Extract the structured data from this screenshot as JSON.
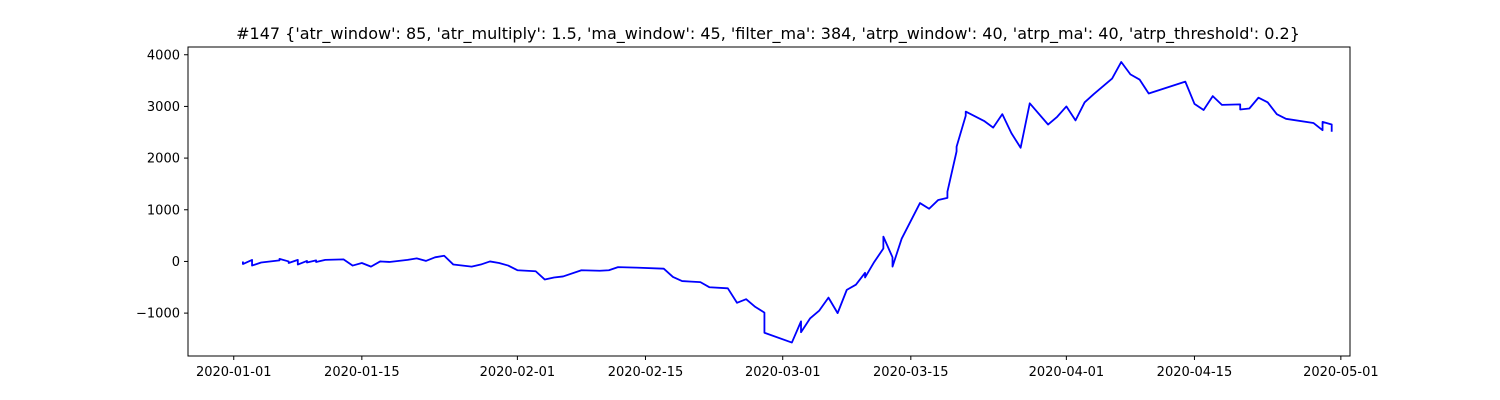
{
  "chart_data": {
    "type": "line",
    "title": "#147 {'atr_window': 85, 'atr_multiply': 1.5, 'ma_window': 45, 'filter_ma': 384, 'atrp_window': 40, 'atrp_ma': 40, 'atrp_threshold': 0.2}",
    "xlabel": "",
    "ylabel": "",
    "xlim": [
      "2019-12-27",
      "2020-05-02"
    ],
    "ylim": [
      -1830,
      4150
    ],
    "x_ticks": [
      "2020-01-01",
      "2020-01-15",
      "2020-02-01",
      "2020-02-15",
      "2020-03-01",
      "2020-03-15",
      "2020-04-01",
      "2020-04-15",
      "2020-05-01"
    ],
    "y_ticks": [
      -1000,
      0,
      1000,
      2000,
      3000,
      4000
    ],
    "y_tick_labels": [
      "−1000",
      "0",
      "1000",
      "2000",
      "3000",
      "4000"
    ],
    "grid": false,
    "legend": "none",
    "line_color": "#0000ff",
    "series": [
      {
        "x": [
          "2020-01-02",
          "2020-01-02",
          "2020-01-03",
          "2020-01-03",
          "2020-01-04",
          "2020-01-06",
          "2020-01-06",
          "2020-01-07",
          "2020-01-07",
          "2020-01-08",
          "2020-01-08",
          "2020-01-09",
          "2020-01-09",
          "2020-01-10",
          "2020-01-10",
          "2020-01-11",
          "2020-01-13",
          "2020-01-14",
          "2020-01-15",
          "2020-01-16",
          "2020-01-17",
          "2020-01-18",
          "2020-01-20",
          "2020-01-21",
          "2020-01-22",
          "2020-01-23",
          "2020-01-24",
          "2020-01-25",
          "2020-01-27",
          "2020-01-28",
          "2020-01-29",
          "2020-01-30",
          "2020-01-31",
          "2020-02-01",
          "2020-02-03",
          "2020-02-04",
          "2020-02-05",
          "2020-02-06",
          "2020-02-08",
          "2020-02-10",
          "2020-02-11",
          "2020-02-12",
          "2020-02-14",
          "2020-02-17",
          "2020-02-18",
          "2020-02-19",
          "2020-02-20",
          "2020-02-21",
          "2020-02-22",
          "2020-02-24",
          "2020-02-25",
          "2020-02-26",
          "2020-02-27",
          "2020-02-28",
          "2020-02-28",
          "2020-03-02",
          "2020-03-03",
          "2020-03-03",
          "2020-03-04",
          "2020-03-05",
          "2020-03-06",
          "2020-03-07",
          "2020-03-08",
          "2020-03-09",
          "2020-03-10",
          "2020-03-10",
          "2020-03-11",
          "2020-03-12",
          "2020-03-12",
          "2020-03-13",
          "2020-03-13",
          "2020-03-14",
          "2020-03-16",
          "2020-03-17",
          "2020-03-18",
          "2020-03-19",
          "2020-03-19",
          "2020-03-20",
          "2020-03-20",
          "2020-03-21",
          "2020-03-21",
          "2020-03-23",
          "2020-03-24",
          "2020-03-25",
          "2020-03-26",
          "2020-03-27",
          "2020-03-28",
          "2020-03-30",
          "2020-03-31",
          "2020-04-01",
          "2020-04-02",
          "2020-04-03",
          "2020-04-04",
          "2020-04-06",
          "2020-04-07",
          "2020-04-08",
          "2020-04-09",
          "2020-04-10",
          "2020-04-14",
          "2020-04-15",
          "2020-04-16",
          "2020-04-17",
          "2020-04-18",
          "2020-04-20",
          "2020-04-20",
          "2020-04-21",
          "2020-04-22",
          "2020-04-23",
          "2020-04-24",
          "2020-04-25",
          "2020-04-28",
          "2020-04-29",
          "2020-04-29",
          "2020-04-30",
          "2020-04-30"
        ],
        "y": [
          0,
          -50,
          30,
          -80,
          -20,
          20,
          50,
          0,
          -30,
          30,
          -60,
          10,
          -20,
          20,
          -10,
          30,
          40,
          -80,
          -30,
          -100,
          0,
          -10,
          30,
          60,
          10,
          80,
          110,
          -60,
          -100,
          -60,
          0,
          -30,
          -80,
          -170,
          -190,
          -350,
          -310,
          -290,
          -170,
          -180,
          -170,
          -110,
          -120,
          -140,
          -300,
          -380,
          -390,
          -400,
          -500,
          -520,
          -800,
          -730,
          -880,
          -990,
          -1380,
          -1570,
          -1160,
          -1370,
          -1100,
          -950,
          -700,
          -1000,
          -550,
          -450,
          -220,
          -310,
          -10,
          250,
          480,
          80,
          -100,
          440,
          1130,
          1020,
          1190,
          1230,
          1350,
          2130,
          2220,
          2820,
          2900,
          2720,
          2590,
          2850,
          2480,
          2200,
          3060,
          2650,
          2800,
          3000,
          2730,
          3080,
          3240,
          3540,
          3860,
          3620,
          3520,
          3250,
          3480,
          3050,
          2930,
          3200,
          3030,
          3040,
          2940,
          2960,
          3170,
          3080,
          2850,
          2760,
          2680,
          2540,
          2700,
          2650,
          2510
        ]
      }
    ]
  }
}
